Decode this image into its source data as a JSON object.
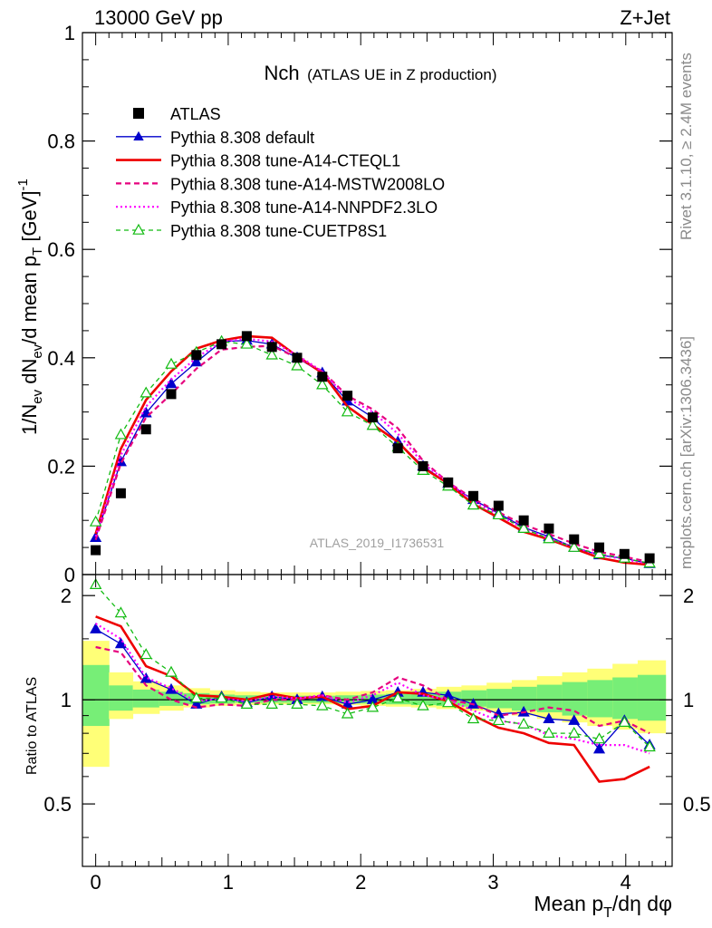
{
  "header": {
    "left": "13000 GeV pp",
    "right": "Z+Jet"
  },
  "side_labels": {
    "rivet": "Rivet 3.1.10, ≥ 2.4M events",
    "mcplots": "mcplots.cern.ch [arXiv:1306.3436]"
  },
  "watermark": "ATLAS_2019_I1736531",
  "chart_data": [
    {
      "type": "line",
      "title_main": "Nch",
      "title_sub": "(ATLAS UE in Z production)",
      "ylabel": "1/N_ev dN_ev/d mean p_T [GeV]^-1",
      "ylim": [
        0,
        1.0
      ],
      "yticks": [
        "0",
        "0.2",
        "0.4",
        "0.6",
        "0.8",
        "1"
      ],
      "xlim": [
        -0.1,
        4.35
      ],
      "legend_placement": "top-left",
      "x": [
        0.0,
        0.19,
        0.38,
        0.57,
        0.76,
        0.95,
        1.14,
        1.33,
        1.52,
        1.71,
        1.9,
        2.09,
        2.28,
        2.47,
        2.66,
        2.85,
        3.04,
        3.23,
        3.42,
        3.61,
        3.8,
        3.99,
        4.18
      ],
      "series": [
        {
          "name": "ATLAS",
          "color": "#000000",
          "style": "data-square",
          "values": [
            0.045,
            0.15,
            0.268,
            0.333,
            0.405,
            0.425,
            0.44,
            0.42,
            0.4,
            0.365,
            0.33,
            0.29,
            0.233,
            0.2,
            0.17,
            0.145,
            0.127,
            0.1,
            0.085,
            0.065,
            0.05,
            0.038,
            0.03
          ]
        },
        {
          "name": "Pythia 8.308 default",
          "color": "#0000cc",
          "style": "solid-triangle",
          "values": [
            0.068,
            0.208,
            0.298,
            0.352,
            0.392,
            0.43,
            0.432,
            0.425,
            0.4,
            0.372,
            0.32,
            0.29,
            0.245,
            0.2,
            0.168,
            0.138,
            0.113,
            0.087,
            0.07,
            0.05,
            0.036,
            0.03,
            0.02
          ]
        },
        {
          "name": "Pythia 8.308 tune-A14-CTEQL1",
          "color": "#ee0000",
          "style": "solid-thick",
          "values": [
            0.075,
            0.232,
            0.322,
            0.375,
            0.417,
            0.432,
            0.44,
            0.437,
            0.403,
            0.372,
            0.31,
            0.277,
            0.245,
            0.197,
            0.168,
            0.13,
            0.105,
            0.079,
            0.065,
            0.048,
            0.031,
            0.022,
            0.018
          ]
        },
        {
          "name": "Pythia 8.308 tune-A14-MSTW2008LO",
          "color": "#e6007e",
          "style": "dashed",
          "values": [
            0.064,
            0.205,
            0.29,
            0.333,
            0.38,
            0.415,
            0.42,
            0.422,
            0.4,
            0.375,
            0.33,
            0.305,
            0.27,
            0.21,
            0.17,
            0.14,
            0.115,
            0.092,
            0.075,
            0.057,
            0.042,
            0.033,
            0.023
          ]
        },
        {
          "name": "Pythia 8.308 tune-A14-NNPDF2.3LO",
          "color": "#ff00ff",
          "style": "dotted",
          "values": [
            0.07,
            0.22,
            0.31,
            0.36,
            0.4,
            0.43,
            0.435,
            0.43,
            0.405,
            0.375,
            0.325,
            0.3,
            0.26,
            0.205,
            0.17,
            0.135,
            0.11,
            0.085,
            0.067,
            0.05,
            0.037,
            0.028,
            0.02
          ]
        },
        {
          "name": "Pythia 8.308 tune-CUETP8S1",
          "color": "#11bb11",
          "style": "dashed-open-triangle",
          "values": [
            0.097,
            0.258,
            0.335,
            0.388,
            0.41,
            0.43,
            0.425,
            0.405,
            0.385,
            0.35,
            0.3,
            0.275,
            0.235,
            0.192,
            0.163,
            0.128,
            0.11,
            0.085,
            0.066,
            0.05,
            0.038,
            0.03,
            0.021
          ]
        }
      ]
    },
    {
      "type": "line",
      "ylabel": "Ratio to ATLAS",
      "ylim": [
        0.33,
        2.3
      ],
      "yticks": [
        "0.5",
        "1",
        "2"
      ],
      "xlabel": "Mean p_T/dη dφ",
      "xticks": [
        "0",
        "1",
        "2",
        "3",
        "4"
      ],
      "x": [
        0.0,
        0.19,
        0.38,
        0.57,
        0.76,
        0.95,
        1.14,
        1.33,
        1.52,
        1.71,
        1.9,
        2.09,
        2.28,
        2.47,
        2.66,
        2.85,
        3.04,
        3.23,
        3.42,
        3.61,
        3.8,
        3.99,
        4.18
      ],
      "bands": {
        "edges": [
          -0.1,
          0.1,
          0.28,
          0.48,
          0.66,
          0.86,
          1.05,
          1.24,
          1.43,
          1.62,
          1.81,
          2.0,
          2.19,
          2.38,
          2.57,
          2.76,
          2.95,
          3.14,
          3.33,
          3.52,
          3.71,
          3.9,
          4.09,
          4.3
        ],
        "outer_low": [
          0.64,
          0.88,
          0.91,
          0.93,
          0.95,
          0.96,
          0.965,
          0.97,
          0.97,
          0.97,
          0.965,
          0.96,
          0.955,
          0.95,
          0.94,
          0.93,
          0.92,
          0.9,
          0.88,
          0.86,
          0.84,
          0.82,
          0.8
        ],
        "outer_high": [
          1.48,
          1.2,
          1.13,
          1.1,
          1.08,
          1.065,
          1.055,
          1.05,
          1.05,
          1.05,
          1.055,
          1.06,
          1.065,
          1.075,
          1.09,
          1.1,
          1.12,
          1.14,
          1.17,
          1.2,
          1.23,
          1.27,
          1.3
        ],
        "inner_low": [
          0.84,
          0.93,
          0.95,
          0.96,
          0.97,
          0.975,
          0.98,
          0.98,
          0.98,
          0.98,
          0.975,
          0.975,
          0.97,
          0.965,
          0.96,
          0.955,
          0.945,
          0.93,
          0.92,
          0.9,
          0.89,
          0.88,
          0.87
        ],
        "inner_high": [
          1.26,
          1.1,
          1.07,
          1.055,
          1.045,
          1.035,
          1.03,
          1.027,
          1.027,
          1.027,
          1.03,
          1.035,
          1.04,
          1.045,
          1.055,
          1.065,
          1.075,
          1.09,
          1.105,
          1.125,
          1.14,
          1.16,
          1.18
        ]
      },
      "series": [
        {
          "name": "Pythia 8.308 default",
          "color": "#0000cc",
          "style": "solid-triangle",
          "values": [
            1.6,
            1.45,
            1.15,
            1.07,
            0.97,
            1.02,
            0.98,
            1.02,
            1.0,
            1.02,
            0.97,
            1.0,
            1.05,
            1.05,
            1.03,
            0.97,
            0.91,
            0.92,
            0.88,
            0.87,
            0.72,
            0.87,
            0.74
          ]
        },
        {
          "name": "Pythia 8.308 tune-A14-CTEQL1",
          "color": "#ee0000",
          "style": "solid-thick",
          "values": [
            1.74,
            1.63,
            1.25,
            1.17,
            1.03,
            1.02,
            1.0,
            1.04,
            1.01,
            1.02,
            0.94,
            0.96,
            1.05,
            1.04,
            0.99,
            0.9,
            0.83,
            0.8,
            0.75,
            0.74,
            0.58,
            0.59,
            0.64
          ]
        },
        {
          "name": "Pythia 8.308 tune-A14-MSTW2008LO",
          "color": "#e6007e",
          "style": "dashed",
          "values": [
            1.42,
            1.37,
            1.1,
            1.0,
            0.95,
            0.97,
            0.96,
            1.0,
            1.0,
            1.03,
            1.0,
            1.05,
            1.16,
            1.1,
            1.0,
            0.97,
            0.9,
            0.92,
            0.95,
            0.93,
            0.84,
            0.87,
            0.8
          ]
        },
        {
          "name": "Pythia 8.308 tune-A14-NNPDF2.3LO",
          "color": "#ff00ff",
          "style": "dotted",
          "values": [
            1.66,
            1.5,
            1.16,
            1.08,
            0.99,
            1.01,
            0.99,
            1.02,
            1.01,
            1.03,
            0.98,
            1.03,
            1.12,
            1.03,
            1.0,
            0.93,
            0.87,
            0.85,
            0.79,
            0.77,
            0.74,
            0.74,
            0.7
          ]
        },
        {
          "name": "Pythia 8.308 tune-CUETP8S1",
          "color": "#11bb11",
          "style": "dashed-open-triangle",
          "values": [
            2.15,
            1.78,
            1.35,
            1.2,
            1.01,
            1.01,
            0.97,
            0.97,
            0.97,
            0.96,
            0.91,
            0.95,
            1.01,
            0.96,
            0.98,
            0.88,
            0.87,
            0.85,
            0.8,
            0.8,
            0.77,
            0.86,
            0.73
          ]
        }
      ]
    }
  ]
}
